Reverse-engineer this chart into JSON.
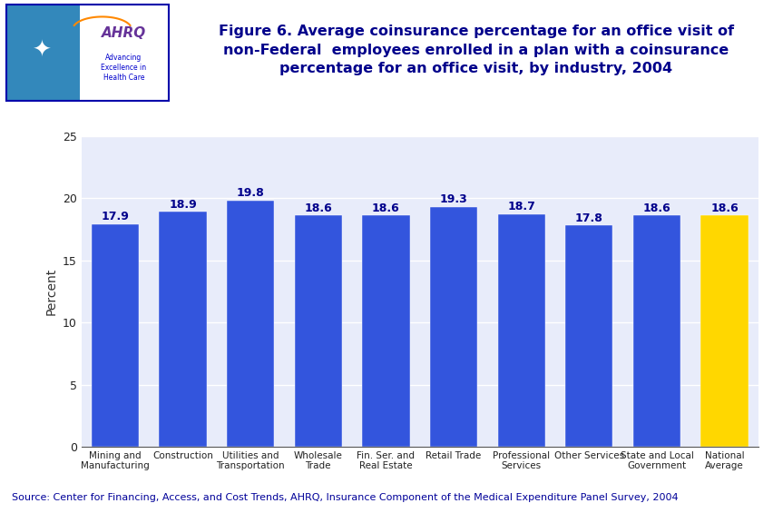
{
  "categories": [
    "Mining and\nManufacturing",
    "Construction",
    "Utilities and\nTransportation",
    "Wholesale\nTrade",
    "Fin. Ser. and\nReal Estate",
    "Retail Trade",
    "Professional\nServices",
    "Other Services",
    "State and Local\nGovernment",
    "National\nAverage"
  ],
  "values": [
    17.9,
    18.9,
    19.8,
    18.6,
    18.6,
    19.3,
    18.7,
    17.8,
    18.6,
    18.6
  ],
  "bar_colors": [
    "#3355DD",
    "#3355DD",
    "#3355DD",
    "#3355DD",
    "#3355DD",
    "#3355DD",
    "#3355DD",
    "#3355DD",
    "#3355DD",
    "#FFD700"
  ],
  "title_line1": "Figure 6. Average coinsurance percentage for an office visit of",
  "title_line2": "non-Federal  employees enrolled in a plan with a coinsurance",
  "title_line3": "percentage for an office visit, by industry, 2004",
  "ylabel": "Percent",
  "ylim": [
    0,
    25
  ],
  "yticks": [
    0,
    5,
    10,
    15,
    20,
    25
  ],
  "source_text": "Source: Center for Financing, Access, and Cost Trends, AHRQ, Insurance Component of the Medical Expenditure Panel Survey, 2004",
  "bg_color": "#E8ECFA",
  "title_color": "#00008B",
  "value_label_color": "#00008B",
  "value_label_fontsize": 9,
  "ylabel_fontsize": 10,
  "xtick_fontsize": 7.5,
  "ytick_fontsize": 9,
  "source_fontsize": 8,
  "title_fontsize": 11.5,
  "logo_left_bg": "#3388BB",
  "logo_border_color": "#0000AA",
  "sep_bar_color": "#000099",
  "ahrq_color": "#663399",
  "advancing_color": "#0000CC"
}
